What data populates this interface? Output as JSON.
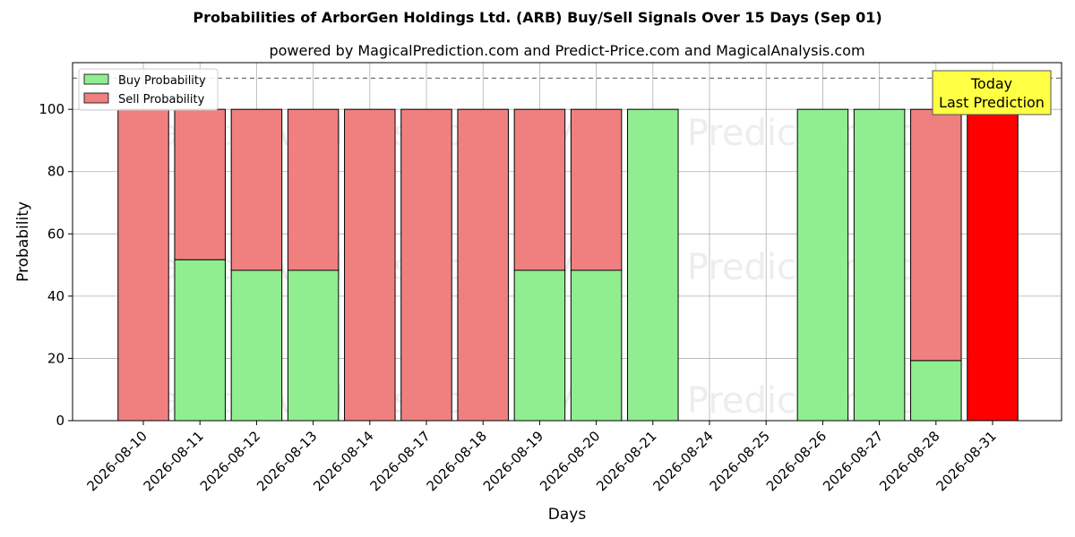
{
  "chart_data": {
    "type": "bar",
    "stacked": true,
    "title": "Probabilities of ArborGen Holdings Ltd. (ARB) Buy/Sell Signals Over 15 Days (Sep 01)",
    "subtitle": "powered by MagicalPrediction.com and Predict-Price.com and MagicalAnalysis.com",
    "xlabel": "Days",
    "ylabel": "Probability",
    "ylim": [
      0,
      115
    ],
    "yticks": [
      0,
      20,
      40,
      60,
      80,
      100
    ],
    "grid": true,
    "legend_position": "top-left",
    "reference_line": 110,
    "categories": [
      "2026-08-10",
      "2026-08-11",
      "2026-08-12",
      "2026-08-13",
      "2026-08-14",
      "2026-08-17",
      "2026-08-18",
      "2026-08-19",
      "2026-08-20",
      "2026-08-21",
      "2026-08-24",
      "2026-08-25",
      "2026-08-26",
      "2026-08-27",
      "2026-08-28",
      "2026-08-31"
    ],
    "series": [
      {
        "name": "Buy Probability",
        "color": "#90ee90",
        "values": [
          0,
          51.7,
          48.3,
          48.3,
          0,
          0,
          0,
          48.3,
          48.3,
          100,
          0,
          0,
          100,
          100,
          19.3,
          0
        ]
      },
      {
        "name": "Sell Probability",
        "color": "#f08080",
        "values": [
          100,
          48.3,
          51.7,
          51.7,
          100,
          100,
          100,
          51.7,
          51.7,
          0,
          0,
          0,
          0,
          0,
          80.7,
          100
        ]
      }
    ],
    "highlight": {
      "category": "2026-08-31",
      "color": "#ff0000"
    },
    "annotation": {
      "lines": [
        "Today",
        "Last Prediction"
      ],
      "background": "#ffff44"
    },
    "watermarks": [
      "MagicalAnalysis.com",
      "Magica Prediction.com"
    ]
  }
}
